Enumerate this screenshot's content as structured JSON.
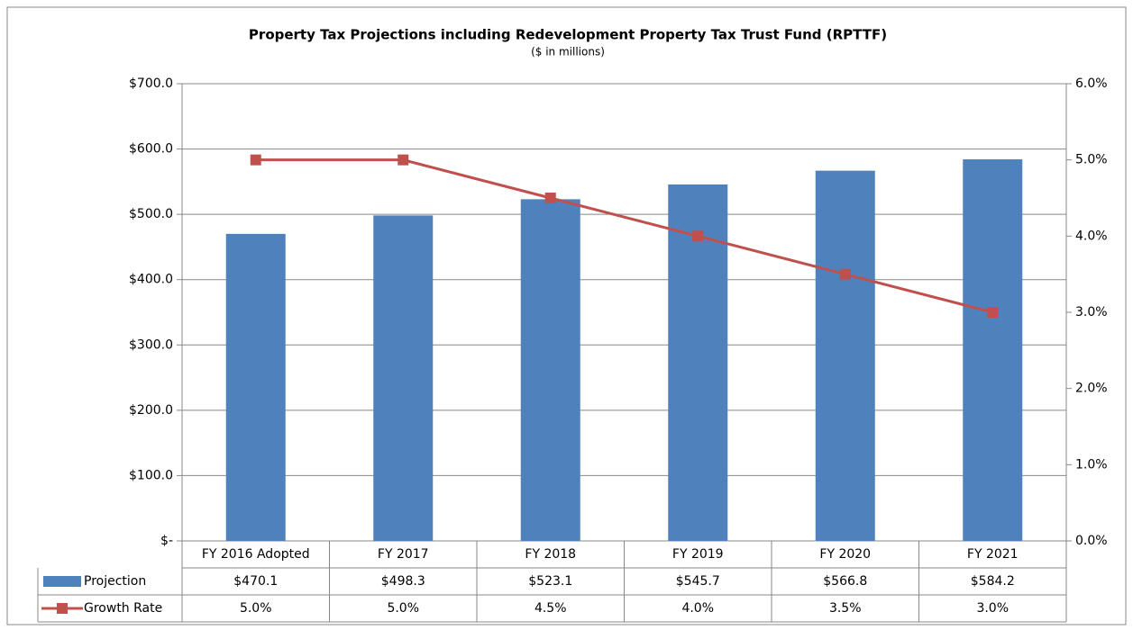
{
  "chart_data": {
    "type": "bar",
    "title": "Property Tax Projections including Redevelopment Property Tax Trust Fund (RPTTF)",
    "subtitle": "($ in millions)",
    "categories": [
      "FY 2016 Adopted",
      "FY 2017",
      "FY 2018",
      "FY 2019",
      "FY 2020",
      "FY 2021"
    ],
    "series": [
      {
        "name": "Projection",
        "type": "bar",
        "color": "#4f81bd",
        "values": [
          470.1,
          498.3,
          523.1,
          545.7,
          566.8,
          584.2
        ],
        "value_labels": [
          "$470.1",
          "$498.3",
          "$523.1",
          "$545.7",
          "$566.8",
          "$584.2"
        ]
      },
      {
        "name": "Growth Rate",
        "type": "line",
        "axis": "y2",
        "color": "#c0504d",
        "values": [
          5.0,
          5.0,
          4.5,
          4.0,
          3.5,
          3.0
        ],
        "value_labels": [
          "5.0%",
          "5.0%",
          "4.5%",
          "4.0%",
          "3.5%",
          "3.0%"
        ]
      }
    ],
    "ylim": [
      0,
      700
    ],
    "yticks": [
      {
        "value": 0,
        "label": "$-"
      },
      {
        "value": 100,
        "label": "$100.0"
      },
      {
        "value": 200,
        "label": "$200.0"
      },
      {
        "value": 300,
        "label": "$300.0"
      },
      {
        "value": 400,
        "label": "$400.0"
      },
      {
        "value": 500,
        "label": "$500.0"
      },
      {
        "value": 600,
        "label": "$600.0"
      },
      {
        "value": 700,
        "label": "$700.0"
      }
    ],
    "y2lim": [
      0,
      6
    ],
    "y2ticks": [
      {
        "value": 0,
        "label": "0.0%"
      },
      {
        "value": 1,
        "label": "1.0%"
      },
      {
        "value": 2,
        "label": "2.0%"
      },
      {
        "value": 3,
        "label": "3.0%"
      },
      {
        "value": 4,
        "label": "4.0%"
      },
      {
        "value": 5,
        "label": "5.0%"
      },
      {
        "value": 6,
        "label": "6.0%"
      }
    ],
    "grid": true
  }
}
